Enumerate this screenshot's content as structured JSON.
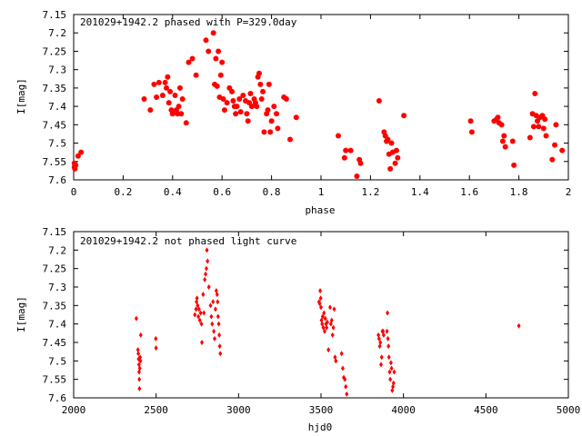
{
  "chart_data": [
    {
      "type": "scatter",
      "title": "201029+1942.2 phased with P=329.0day",
      "xlabel": "phase",
      "ylabel": "I[mag]",
      "xlim": [
        0,
        2
      ],
      "ylim": [
        7.6,
        7.15
      ],
      "y_inverted": true,
      "grid": false,
      "marker": "filled-circle-large",
      "color": "#ff0000",
      "xticks": [
        0,
        0.2,
        0.4,
        0.6,
        0.8,
        1,
        1.2,
        1.4,
        1.6,
        1.8,
        2
      ],
      "xtick_labels": [
        "0",
        "0.2",
        "0.4",
        "0.6",
        "0.8",
        "1",
        "1.2",
        "1.4",
        "1.6",
        "1.8",
        "2"
      ],
      "yticks": [
        7.15,
        7.2,
        7.25,
        7.3,
        7.35,
        7.4,
        7.45,
        7.5,
        7.55,
        7.6
      ],
      "ytick_labels": [
        "7.15",
        "7.2",
        "7.25",
        "7.3",
        "7.35",
        "7.4",
        "7.45",
        "7.5",
        "7.55",
        "7.6"
      ],
      "points": [
        [
          0.003,
          7.555
        ],
        [
          0.003,
          7.565
        ],
        [
          0.005,
          7.57
        ],
        [
          0.008,
          7.56
        ],
        [
          0.018,
          7.535
        ],
        [
          0.03,
          7.525
        ],
        [
          0.285,
          7.38
        ],
        [
          0.31,
          7.41
        ],
        [
          0.325,
          7.34
        ],
        [
          0.335,
          7.375
        ],
        [
          0.345,
          7.335
        ],
        [
          0.36,
          7.37
        ],
        [
          0.37,
          7.335
        ],
        [
          0.375,
          7.35
        ],
        [
          0.38,
          7.32
        ],
        [
          0.385,
          7.39
        ],
        [
          0.39,
          7.36
        ],
        [
          0.395,
          7.41
        ],
        [
          0.4,
          7.42
        ],
        [
          0.41,
          7.37
        ],
        [
          0.415,
          7.41
        ],
        [
          0.42,
          7.42
        ],
        [
          0.425,
          7.4
        ],
        [
          0.43,
          7.35
        ],
        [
          0.435,
          7.42
        ],
        [
          0.44,
          7.38
        ],
        [
          0.455,
          7.445
        ],
        [
          0.465,
          7.28
        ],
        [
          0.48,
          7.27
        ],
        [
          0.495,
          7.315
        ],
        [
          0.535,
          7.22
        ],
        [
          0.545,
          7.25
        ],
        [
          0.565,
          7.2
        ],
        [
          0.57,
          7.34
        ],
        [
          0.575,
          7.27
        ],
        [
          0.58,
          7.345
        ],
        [
          0.585,
          7.25
        ],
        [
          0.59,
          7.375
        ],
        [
          0.595,
          7.315
        ],
        [
          0.6,
          7.28
        ],
        [
          0.605,
          7.38
        ],
        [
          0.61,
          7.41
        ],
        [
          0.62,
          7.39
        ],
        [
          0.63,
          7.35
        ],
        [
          0.64,
          7.36
        ],
        [
          0.645,
          7.385
        ],
        [
          0.65,
          7.4
        ],
        [
          0.655,
          7.42
        ],
        [
          0.66,
          7.4
        ],
        [
          0.67,
          7.38
        ],
        [
          0.675,
          7.415
        ],
        [
          0.685,
          7.37
        ],
        [
          0.695,
          7.385
        ],
        [
          0.7,
          7.42
        ],
        [
          0.705,
          7.44
        ],
        [
          0.71,
          7.39
        ],
        [
          0.715,
          7.365
        ],
        [
          0.72,
          7.4
        ],
        [
          0.73,
          7.38
        ],
        [
          0.735,
          7.39
        ],
        [
          0.74,
          7.4
        ],
        [
          0.745,
          7.32
        ],
        [
          0.75,
          7.31
        ],
        [
          0.755,
          7.34
        ],
        [
          0.76,
          7.38
        ],
        [
          0.765,
          7.36
        ],
        [
          0.77,
          7.47
        ],
        [
          0.78,
          7.42
        ],
        [
          0.785,
          7.41
        ],
        [
          0.79,
          7.34
        ],
        [
          0.795,
          7.47
        ],
        [
          0.8,
          7.44
        ],
        [
          0.81,
          7.4
        ],
        [
          0.82,
          7.42
        ],
        [
          0.825,
          7.46
        ],
        [
          0.85,
          7.375
        ],
        [
          0.86,
          7.38
        ],
        [
          0.875,
          7.49
        ],
        [
          0.9,
          7.43
        ],
        [
          1.07,
          7.48
        ],
        [
          1.095,
          7.54
        ],
        [
          1.1,
          7.52
        ],
        [
          1.12,
          7.52
        ],
        [
          1.145,
          7.59
        ],
        [
          1.155,
          7.545
        ],
        [
          1.16,
          7.555
        ],
        [
          1.235,
          7.385
        ],
        [
          1.255,
          7.47
        ],
        [
          1.26,
          7.48
        ],
        [
          1.265,
          7.495
        ],
        [
          1.27,
          7.49
        ],
        [
          1.275,
          7.53
        ],
        [
          1.28,
          7.57
        ],
        [
          1.285,
          7.5
        ],
        [
          1.29,
          7.525
        ],
        [
          1.3,
          7.555
        ],
        [
          1.305,
          7.52
        ],
        [
          1.31,
          7.54
        ],
        [
          1.335,
          7.425
        ],
        [
          1.605,
          7.44
        ],
        [
          1.61,
          7.47
        ],
        [
          1.7,
          7.44
        ],
        [
          1.71,
          7.435
        ],
        [
          1.715,
          7.43
        ],
        [
          1.72,
          7.445
        ],
        [
          1.73,
          7.45
        ],
        [
          1.735,
          7.495
        ],
        [
          1.74,
          7.48
        ],
        [
          1.745,
          7.51
        ],
        [
          1.775,
          7.495
        ],
        [
          1.78,
          7.56
        ],
        [
          1.845,
          7.485
        ],
        [
          1.855,
          7.42
        ],
        [
          1.86,
          7.455
        ],
        [
          1.865,
          7.365
        ],
        [
          1.87,
          7.425
        ],
        [
          1.875,
          7.44
        ],
        [
          1.88,
          7.455
        ],
        [
          1.885,
          7.43
        ],
        [
          1.895,
          7.425
        ],
        [
          1.9,
          7.46
        ],
        [
          1.905,
          7.435
        ],
        [
          1.91,
          7.48
        ],
        [
          1.935,
          7.545
        ],
        [
          1.945,
          7.505
        ],
        [
          1.95,
          7.45
        ],
        [
          1.975,
          7.52
        ]
      ]
    },
    {
      "type": "scatter",
      "title": "201029+1942.2 not phased light curve",
      "xlabel": "hjd0",
      "ylabel": "I[mag]",
      "xlim": [
        2000,
        5000
      ],
      "ylim": [
        7.6,
        7.15
      ],
      "y_inverted": true,
      "grid": false,
      "marker": "small-diamond",
      "color": "#ff0000",
      "xticks": [
        2000,
        2500,
        3000,
        3500,
        4000,
        4500,
        5000
      ],
      "xtick_labels": [
        "2000",
        "2500",
        "3000",
        "3500",
        "4000",
        "4500",
        "5000"
      ],
      "yticks": [
        7.15,
        7.2,
        7.25,
        7.3,
        7.35,
        7.4,
        7.45,
        7.5,
        7.55,
        7.6
      ],
      "ytick_labels": [
        "7.15",
        "7.2",
        "7.25",
        "7.3",
        "7.35",
        "7.4",
        "7.45",
        "7.5",
        "7.55",
        "7.6"
      ],
      "points": [
        [
          2380,
          7.385
        ],
        [
          2390,
          7.47
        ],
        [
          2392,
          7.48
        ],
        [
          2394,
          7.495
        ],
        [
          2396,
          7.51
        ],
        [
          2397,
          7.53
        ],
        [
          2398,
          7.55
        ],
        [
          2399,
          7.575
        ],
        [
          2401,
          7.52
        ],
        [
          2403,
          7.49
        ],
        [
          2405,
          7.5
        ],
        [
          2407,
          7.43
        ],
        [
          2498,
          7.44
        ],
        [
          2500,
          7.465
        ],
        [
          2735,
          7.375
        ],
        [
          2742,
          7.36
        ],
        [
          2745,
          7.34
        ],
        [
          2748,
          7.33
        ],
        [
          2752,
          7.35
        ],
        [
          2756,
          7.38
        ],
        [
          2760,
          7.36
        ],
        [
          2765,
          7.39
        ],
        [
          2770,
          7.37
        ],
        [
          2775,
          7.4
        ],
        [
          2778,
          7.45
        ],
        [
          2785,
          7.32
        ],
        [
          2790,
          7.37
        ],
        [
          2795,
          7.28
        ],
        [
          2800,
          7.265
        ],
        [
          2805,
          7.25
        ],
        [
          2808,
          7.2
        ],
        [
          2812,
          7.23
        ],
        [
          2820,
          7.3
        ],
        [
          2830,
          7.35
        ],
        [
          2835,
          7.38
        ],
        [
          2840,
          7.4
        ],
        [
          2845,
          7.34
        ],
        [
          2850,
          7.42
        ],
        [
          2855,
          7.44
        ],
        [
          2860,
          7.36
        ],
        [
          2865,
          7.31
        ],
        [
          2870,
          7.32
        ],
        [
          2873,
          7.34
        ],
        [
          2876,
          7.38
        ],
        [
          2880,
          7.4
        ],
        [
          2883,
          7.43
        ],
        [
          2886,
          7.46
        ],
        [
          2889,
          7.48
        ],
        [
          3488,
          7.34
        ],
        [
          3492,
          7.345
        ],
        [
          3495,
          7.31
        ],
        [
          3498,
          7.33
        ],
        [
          3500,
          7.355
        ],
        [
          3503,
          7.39
        ],
        [
          3507,
          7.4
        ],
        [
          3510,
          7.38
        ],
        [
          3514,
          7.41
        ],
        [
          3518,
          7.37
        ],
        [
          3522,
          7.42
        ],
        [
          3526,
          7.385
        ],
        [
          3530,
          7.4
        ],
        [
          3534,
          7.41
        ],
        [
          3538,
          7.395
        ],
        [
          3545,
          7.47
        ],
        [
          3555,
          7.355
        ],
        [
          3560,
          7.4
        ],
        [
          3565,
          7.39
        ],
        [
          3570,
          7.43
        ],
        [
          3575,
          7.41
        ],
        [
          3580,
          7.36
        ],
        [
          3585,
          7.49
        ],
        [
          3590,
          7.5
        ],
        [
          3625,
          7.48
        ],
        [
          3632,
          7.52
        ],
        [
          3638,
          7.545
        ],
        [
          3645,
          7.55
        ],
        [
          3650,
          7.57
        ],
        [
          3656,
          7.59
        ],
        [
          3848,
          7.43
        ],
        [
          3852,
          7.44
        ],
        [
          3856,
          7.46
        ],
        [
          3860,
          7.45
        ],
        [
          3864,
          7.51
        ],
        [
          3868,
          7.49
        ],
        [
          3872,
          7.42
        ],
        [
          3876,
          7.42
        ],
        [
          3880,
          7.43
        ],
        [
          3900,
          7.42
        ],
        [
          3903,
          7.37
        ],
        [
          3906,
          7.44
        ],
        [
          3909,
          7.46
        ],
        [
          3912,
          7.49
        ],
        [
          3916,
          7.53
        ],
        [
          3920,
          7.55
        ],
        [
          3924,
          7.505
        ],
        [
          3928,
          7.52
        ],
        [
          3932,
          7.58
        ],
        [
          3936,
          7.57
        ],
        [
          3940,
          7.56
        ],
        [
          3944,
          7.53
        ],
        [
          4700,
          7.405
        ]
      ]
    }
  ]
}
